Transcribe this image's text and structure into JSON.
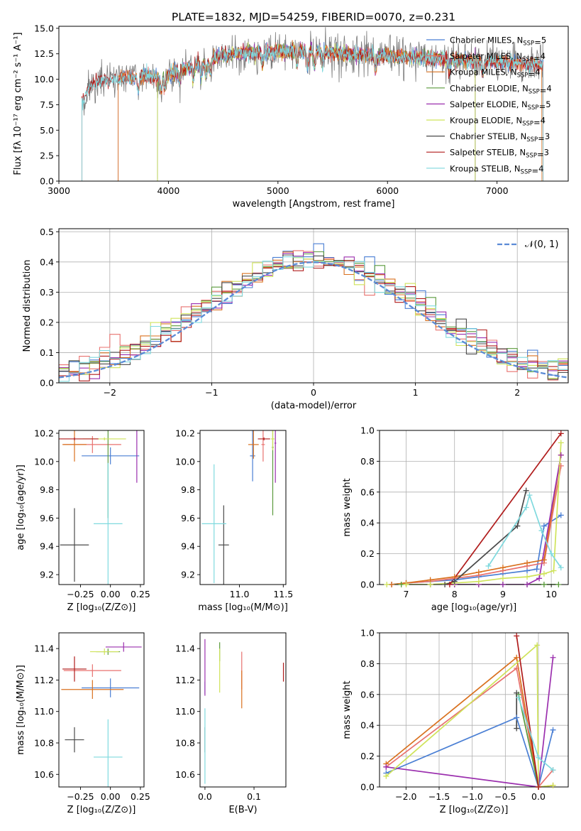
{
  "figure_title": "PLATE=1832, MJD=54259, FIBERID=0070, z=0.231",
  "legend_models": [
    {
      "name": "Chabrier MILES",
      "nssp": "5",
      "color": "#4a7fd4"
    },
    {
      "name": "Salpeter MILES",
      "nssp": "4",
      "color": "#e8726f"
    },
    {
      "name": "Kroupa MILES",
      "nssp": "4",
      "color": "#d9711f"
    },
    {
      "name": "Chabrier ELODIE",
      "nssp": "4",
      "color": "#5a9a3c"
    },
    {
      "name": "Salpeter ELODIE",
      "nssp": "5",
      "color": "#9b2fae"
    },
    {
      "name": "Kroupa ELODIE",
      "nssp": "4",
      "color": "#cfe35a"
    },
    {
      "name": "Chabrier STELIB",
      "nssp": "3",
      "color": "#4a4a4a"
    },
    {
      "name": "Salpeter STELIB",
      "nssp": "3",
      "color": "#b01c1c"
    },
    {
      "name": "Kroupa STELIB",
      "nssp": "4",
      "color": "#7fd9de"
    }
  ],
  "chart_data": [
    {
      "id": "spectrum",
      "type": "line",
      "title": "PLATE=1832, MJD=54259, FIBERID=0070, z=0.231",
      "xlabel": "wavelength [Angstrom, rest frame]",
      "ylabel": "Flux [fλ 10⁻¹⁷ erg cm⁻² s⁻¹ A⁻¹]",
      "xlim": [
        3000,
        7650
      ],
      "ylim": [
        0,
        15.2
      ],
      "xticks": [
        3000,
        4000,
        5000,
        6000,
        7000
      ],
      "yticks": [
        0.0,
        2.5,
        5.0,
        7.5,
        10.0,
        12.5,
        15.0
      ],
      "data_range": [
        3210,
        7420
      ],
      "continuum": {
        "x": [
          3210,
          3300,
          3400,
          3500,
          3600,
          3700,
          3800,
          3900,
          4000,
          4100,
          4200,
          4300,
          4400,
          4500,
          4600,
          4700,
          4800,
          4900,
          5000,
          5100,
          5200,
          5300,
          5400,
          5500,
          5600,
          5700,
          5800,
          5900,
          6000,
          6100,
          6200,
          6300,
          6400,
          6500,
          6600,
          6700,
          6800,
          6900,
          7000,
          7100,
          7200,
          7300,
          7420
        ],
        "y": [
          7.8,
          9.4,
          9.9,
          10.0,
          10.1,
          10.2,
          10.3,
          10.1,
          10.4,
          10.9,
          11.3,
          11.6,
          12.0,
          12.4,
          12.5,
          12.6,
          12.6,
          12.7,
          12.7,
          12.8,
          12.8,
          12.8,
          12.7,
          12.6,
          12.5,
          12.4,
          12.4,
          12.3,
          12.3,
          12.2,
          12.2,
          12.1,
          12.0,
          12.0,
          11.9,
          11.9,
          11.8,
          11.8,
          11.7,
          11.6,
          11.6,
          11.5,
          11.5
        ]
      },
      "model_edges": {
        "Chabrier MILES": [
          3540,
          7420
        ],
        "Salpeter MILES": [
          3540,
          7420
        ],
        "Kroupa MILES": [
          3540,
          7410
        ],
        "Chabrier ELODIE": [
          3900,
          6800
        ],
        "Salpeter ELODIE": [
          3900,
          6800
        ],
        "Kroupa ELODIE": [
          3900,
          6800
        ],
        "Chabrier STELIB": [
          3210,
          7420
        ],
        "Salpeter STELIB": [
          3210,
          7420
        ],
        "Kroupa STELIB": [
          3210,
          7420
        ]
      },
      "legend": "upper right"
    },
    {
      "id": "residuals",
      "type": "histogram",
      "xlabel": "(data-model)/error",
      "ylabel": "Normed distribution",
      "xlim": [
        -2.5,
        2.5
      ],
      "ylim": [
        0,
        0.51
      ],
      "xticks": [
        -2,
        -1,
        0,
        1,
        2
      ],
      "yticks": [
        0.0,
        0.1,
        0.2,
        0.3,
        0.4,
        0.5
      ],
      "bin_width": 0.1,
      "reference_label": "𝒩(0, 1)",
      "reference_color": "#5b8bd6",
      "legend": "upper right",
      "grid": true
    },
    {
      "id": "age-vs-Z",
      "type": "errorbar",
      "xlabel": "Z [log₁₀(Z/Z⊙)]",
      "ylabel": "age  [log₁₀(age/yr)]",
      "xlim": [
        -0.43,
        0.28
      ],
      "ylim": [
        9.13,
        10.22
      ],
      "xticks": [
        -0.25,
        0.0,
        0.25
      ],
      "xticklabels": [
        "−0.25",
        "0.00",
        "0.25"
      ],
      "yticks": [
        9.2,
        9.4,
        9.6,
        9.8,
        10.0,
        10.2
      ],
      "yticklabels": [
        "9.2",
        "9.4",
        "9.6",
        "9.8",
        "10.0",
        "10.2"
      ],
      "points": [
        {
          "series": "Chabrier MILES",
          "x": 0.0,
          "xerr": 0.24,
          "y": 10.04,
          "yerr": 0.06
        },
        {
          "series": "Salpeter MILES",
          "x": -0.15,
          "xerr": 0.24,
          "y": 10.12,
          "yerr": 0.06
        },
        {
          "series": "Kroupa MILES",
          "x": -0.3,
          "xerr": 0.1,
          "y": 10.12,
          "yerr": 0.12
        },
        {
          "series": "Chabrier ELODIE",
          "x": -0.02,
          "xerr": 0.0,
          "y": 10.1,
          "yerr": 0.5
        },
        {
          "series": "Salpeter ELODIE",
          "x": 0.22,
          "xerr": 0.0,
          "y": 10.13,
          "yerr": 0.28
        },
        {
          "series": "Kroupa ELODIE",
          "x": -0.05,
          "xerr": 0.18,
          "y": 10.16,
          "yerr": 0.01
        },
        {
          "series": "Chabrier STELIB",
          "x": -0.3,
          "xerr": 0.12,
          "y": 9.41,
          "yerr": 0.26
        },
        {
          "series": "Salpeter STELIB",
          "x": -0.3,
          "xerr": 0.2,
          "y": 10.16,
          "yerr": 0.01
        },
        {
          "series": "Kroupa STELIB",
          "x": -0.02,
          "xerr": 0.12,
          "y": 9.56,
          "yerr": 0.43
        }
      ]
    },
    {
      "id": "age-vs-mass",
      "type": "errorbar",
      "xlabel": "mass [log₁₀(M/M⊙)]",
      "ylabel": "",
      "xlim": [
        10.55,
        11.53
      ],
      "ylim": [
        9.13,
        10.22
      ],
      "xticks": [
        11.0,
        11.5
      ],
      "xticklabels": [
        "11.0",
        "11.5"
      ],
      "yticks": [
        9.2,
        9.4,
        9.6,
        9.8,
        10.0,
        10.2
      ],
      "yticklabels": [
        "9.2",
        "9.4",
        "9.6",
        "9.8",
        "10.0",
        "10.2"
      ],
      "points": [
        {
          "series": "Chabrier MILES",
          "x": 11.15,
          "xerr": 0.03,
          "y": 10.04,
          "yerr": 0.18
        },
        {
          "series": "Salpeter MILES",
          "x": 11.27,
          "xerr": 0.02,
          "y": 10.12,
          "yerr": 0.12
        },
        {
          "series": "Kroupa MILES",
          "x": 11.16,
          "xerr": 0.06,
          "y": 10.12,
          "yerr": 0.1
        },
        {
          "series": "Chabrier ELODIE",
          "x": 11.38,
          "xerr": 0.01,
          "y": 10.1,
          "yerr": 0.48
        },
        {
          "series": "Salpeter ELODIE",
          "x": 11.41,
          "xerr": 0.01,
          "y": 10.13,
          "yerr": 0.28
        },
        {
          "series": "Kroupa ELODIE",
          "x": 11.38,
          "xerr": 0.02,
          "y": 10.16,
          "yerr": 0.08
        },
        {
          "series": "Chabrier STELIB",
          "x": 10.82,
          "xerr": 0.06,
          "y": 9.41,
          "yerr": 0.28
        },
        {
          "series": "Salpeter STELIB",
          "x": 11.28,
          "xerr": 0.07,
          "y": 10.16,
          "yerr": 0.01
        },
        {
          "series": "Kroupa STELIB",
          "x": 10.71,
          "xerr": 0.14,
          "y": 9.56,
          "yerr": 0.42
        }
      ]
    },
    {
      "id": "mass-weight-vs-age",
      "type": "line",
      "xlabel": "age  [log₁₀(age/yr)]",
      "ylabel": "mass weight",
      "xlim": [
        6.45,
        10.35
      ],
      "ylim": [
        0,
        1.0
      ],
      "xticks": [
        7,
        8,
        9,
        10
      ],
      "yticks": [
        0.0,
        0.2,
        0.4,
        0.6,
        0.8,
        1.0
      ],
      "grid": true,
      "series": [
        {
          "name": "Chabrier MILES",
          "x": [
            6.7,
            7.0,
            7.5,
            8.0,
            8.5,
            9.0,
            9.5,
            9.7,
            9.85,
            10.2
          ],
          "y": [
            0.0,
            0.01,
            0.02,
            0.03,
            0.05,
            0.07,
            0.09,
            0.1,
            0.38,
            0.45
          ]
        },
        {
          "name": "Salpeter MILES",
          "x": [
            6.7,
            7.0,
            7.5,
            8.0,
            8.5,
            9.0,
            9.5,
            9.85,
            10.2
          ],
          "y": [
            0.0,
            0.01,
            0.02,
            0.04,
            0.06,
            0.09,
            0.12,
            0.14,
            0.77
          ]
        },
        {
          "name": "Kroupa MILES",
          "x": [
            6.7,
            7.0,
            7.5,
            8.0,
            8.5,
            9.0,
            9.5,
            9.85,
            10.2
          ],
          "y": [
            0.0,
            0.01,
            0.03,
            0.05,
            0.08,
            0.11,
            0.14,
            0.16,
            0.84
          ]
        },
        {
          "name": "Chabrier ELODIE",
          "x": [
            6.9,
            7.5,
            8.0,
            8.5,
            9.0,
            9.5,
            9.85,
            10.15
          ],
          "y": [
            0.0,
            0.0,
            0.0,
            0.0,
            0.0,
            0.0,
            0.0,
            0.0
          ]
        },
        {
          "name": "Salpeter ELODIE",
          "x": [
            7.5,
            8.0,
            8.5,
            9.0,
            9.5,
            9.75,
            10.2
          ],
          "y": [
            0.0,
            0.0,
            0.0,
            0.0,
            0.0,
            0.04,
            0.84
          ]
        },
        {
          "name": "Kroupa ELODIE",
          "x": [
            6.6,
            7.0,
            7.5,
            8.0,
            8.5,
            9.0,
            9.5,
            9.85,
            10.05,
            10.2
          ],
          "y": [
            0.0,
            0.0,
            0.0,
            0.01,
            0.02,
            0.04,
            0.05,
            0.07,
            0.09,
            0.92
          ]
        },
        {
          "name": "Chabrier STELIB",
          "x": [
            7.8,
            8.0,
            9.3,
            9.48
          ],
          "y": [
            0.0,
            0.02,
            0.38,
            0.61
          ]
        },
        {
          "name": "Salpeter STELIB",
          "x": [
            7.9,
            10.2
          ],
          "y": [
            0.0,
            0.98
          ]
        },
        {
          "name": "Kroupa STELIB",
          "x": [
            8.7,
            9.48,
            9.55,
            9.8,
            10.0,
            10.2
          ],
          "y": [
            0.12,
            0.5,
            0.58,
            0.35,
            0.2,
            0.11
          ]
        }
      ]
    },
    {
      "id": "mass-vs-Z",
      "type": "errorbar",
      "xlabel": "Z [log₁₀(Z/Z⊙)]",
      "ylabel": "mass [log₁₀(M/M⊙)]",
      "xlim": [
        -0.43,
        0.28
      ],
      "ylim": [
        10.52,
        11.5
      ],
      "xticks": [
        -0.25,
        0.0,
        0.25
      ],
      "xticklabels": [
        "−0.25",
        "0.00",
        "0.25"
      ],
      "yticks": [
        10.6,
        10.8,
        11.0,
        11.2,
        11.4
      ],
      "yticklabels": [
        "10.6",
        "10.8",
        "11.0",
        "11.2",
        "11.4"
      ],
      "points": [
        {
          "series": "Chabrier MILES",
          "x": 0.0,
          "xerr": 0.24,
          "y": 11.15,
          "yerr": 0.06
        },
        {
          "series": "Salpeter MILES",
          "x": -0.15,
          "xerr": 0.24,
          "y": 11.26,
          "yerr": 0.04
        },
        {
          "series": "Kroupa MILES",
          "x": -0.15,
          "xerr": 0.26,
          "y": 11.14,
          "yerr": 0.06
        },
        {
          "series": "Chabrier ELODIE",
          "x": -0.02,
          "xerr": 0.1,
          "y": 11.38,
          "yerr": 0.02
        },
        {
          "series": "Salpeter ELODIE",
          "x": 0.11,
          "xerr": 0.15,
          "y": 11.41,
          "yerr": 0.03
        },
        {
          "series": "Kroupa ELODIE",
          "x": -0.05,
          "xerr": 0.12,
          "y": 11.38,
          "yerr": 0.02
        },
        {
          "series": "Chabrier STELIB",
          "x": -0.3,
          "xerr": 0.08,
          "y": 10.82,
          "yerr": 0.08
        },
        {
          "series": "Salpeter STELIB",
          "x": -0.3,
          "xerr": 0.1,
          "y": 11.27,
          "yerr": 0.08
        },
        {
          "series": "Kroupa STELIB",
          "x": -0.02,
          "xerr": 0.12,
          "y": 10.71,
          "yerr": 0.24
        }
      ]
    },
    {
      "id": "mass-vs-EBV",
      "type": "errorbar",
      "xlabel": "E(B-V)",
      "ylabel": "",
      "xlim": [
        -0.01,
        0.165
      ],
      "ylim": [
        10.52,
        11.5
      ],
      "xticks": [
        0.0,
        0.1
      ],
      "xticklabels": [
        "0.0",
        "0.1"
      ],
      "yticks": [
        10.6,
        10.8,
        11.0,
        11.2,
        11.4
      ],
      "yticklabels": [
        "10.6",
        "10.8",
        "11.0",
        "11.2",
        "11.4"
      ],
      "points": [
        {
          "series": "Chabrier MILES",
          "x": 0.0,
          "xerr": 0.0,
          "y": 11.15,
          "yerr": 0.04
        },
        {
          "series": "Salpeter MILES",
          "x": 0.075,
          "xerr": 0.0,
          "y": 11.26,
          "yerr": 0.12
        },
        {
          "series": "Kroupa MILES",
          "x": 0.075,
          "xerr": 0.0,
          "y": 11.14,
          "yerr": 0.12
        },
        {
          "series": "Chabrier ELODIE",
          "x": 0.03,
          "xerr": 0.0,
          "y": 11.38,
          "yerr": 0.06
        },
        {
          "series": "Salpeter ELODIE",
          "x": 0.0,
          "xerr": 0.0,
          "y": 11.28,
          "yerr": 0.18
        },
        {
          "series": "Kroupa ELODIE",
          "x": 0.03,
          "xerr": 0.0,
          "y": 11.26,
          "yerr": 0.14
        },
        {
          "series": "Chabrier STELIB",
          "x": 0.0,
          "xerr": 0.0,
          "y": 10.82,
          "yerr": 0.08
        },
        {
          "series": "Salpeter STELIB",
          "x": 0.16,
          "xerr": 0.0,
          "y": 11.25,
          "yerr": 0.06
        },
        {
          "series": "Kroupa STELIB",
          "x": 0.0,
          "xerr": 0.0,
          "y": 10.78,
          "yerr": 0.24
        }
      ]
    },
    {
      "id": "mass-weight-vs-Z",
      "type": "line",
      "xlabel": "Z [log₁₀(Z/Z⊙)]",
      "ylabel": "mass weight",
      "xlim": [
        -2.4,
        0.45
      ],
      "ylim": [
        0,
        1.0
      ],
      "xticks": [
        -2.0,
        -1.5,
        -1.0,
        -0.5,
        0.0
      ],
      "xticklabels": [
        "−2.0",
        "−1.5",
        "−1.0",
        "−0.5",
        "0.0"
      ],
      "yticks": [
        0.0,
        0.2,
        0.4,
        0.6,
        0.8,
        1.0
      ],
      "grid": true,
      "series": [
        {
          "name": "Chabrier MILES",
          "x": [
            -2.3,
            -0.33,
            0.0,
            0.22
          ],
          "y": [
            0.09,
            0.45,
            0.0,
            0.37
          ]
        },
        {
          "name": "Salpeter MILES",
          "x": [
            -2.3,
            -0.33,
            0.0,
            0.22
          ],
          "y": [
            0.13,
            0.77,
            0.0,
            0.11
          ]
        },
        {
          "name": "Kroupa MILES",
          "x": [
            -2.3,
            -0.33,
            0.0,
            0.22
          ],
          "y": [
            0.15,
            0.84,
            0.0,
            0.01
          ]
        },
        {
          "name": "Chabrier ELODIE",
          "x": [
            -0.3,
            0.0
          ],
          "y": [
            0.6,
            0.0
          ]
        },
        {
          "name": "Salpeter ELODIE",
          "x": [
            -2.3,
            0.0,
            0.22
          ],
          "y": [
            0.13,
            0.0,
            0.84
          ]
        },
        {
          "name": "Kroupa ELODIE",
          "x": [
            -2.3,
            -0.02,
            0.0,
            0.22
          ],
          "y": [
            0.07,
            0.92,
            0.0,
            0.01
          ]
        },
        {
          "name": "Chabrier STELIB",
          "x": [
            -0.33,
            -0.33
          ],
          "y": [
            0.38,
            0.61
          ]
        },
        {
          "name": "Salpeter STELIB",
          "x": [
            -0.33,
            0.0
          ],
          "y": [
            0.98,
            0.0
          ]
        },
        {
          "name": "Kroupa STELIB",
          "x": [
            -0.3,
            0.0,
            0.22
          ],
          "y": [
            0.58,
            0.19,
            0.11
          ]
        }
      ]
    }
  ]
}
